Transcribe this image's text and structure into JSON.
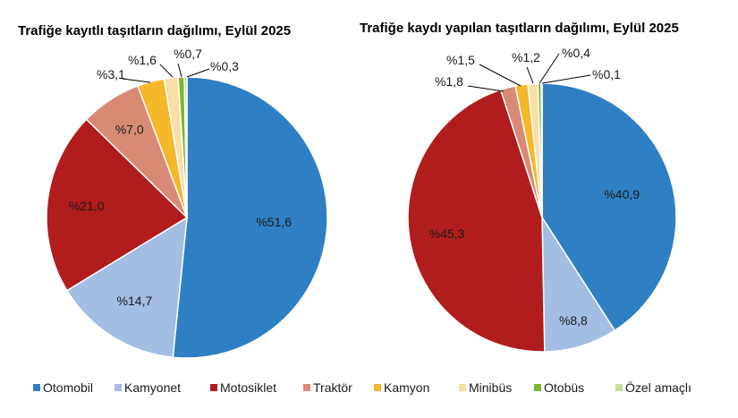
{
  "chart_data": [
    {
      "type": "pie",
      "title": "Trafiğe kayıtlı taşıtların dağılımı, Eylül 2025",
      "categories": [
        "Otomobil",
        "Kamyonet",
        "Motosiklet",
        "Traktör",
        "Kamyon",
        "Minibüs",
        "Otobüs",
        "Özel amaçlı"
      ],
      "values": [
        51.6,
        14.7,
        21.0,
        7.0,
        3.1,
        1.6,
        0.7,
        0.3
      ],
      "labels": [
        "%51,6",
        "%14,7",
        "%21,0",
        "%7,0",
        "%3,1",
        "%1,6",
        "%0,7",
        "%0,3"
      ]
    },
    {
      "type": "pie",
      "title": "Trafiğe kaydı yapılan taşıtların dağılımı, Eylül 2025",
      "categories": [
        "Otomobil",
        "Kamyonet",
        "Motosiklet",
        "Traktör",
        "Kamyon",
        "Minibüs",
        "Otobüs",
        "Özel amaçlı"
      ],
      "values": [
        40.9,
        8.8,
        45.3,
        1.8,
        1.5,
        1.2,
        0.4,
        0.1
      ],
      "labels": [
        "%40,9",
        "%8,8",
        "%45,3",
        "%1,8",
        "%1,5",
        "%1,2",
        "%0,4",
        "%0,1"
      ]
    }
  ],
  "legend": {
    "position": "bottom",
    "items": [
      "Otomobil",
      "Kamyonet",
      "Motosiklet",
      "Traktör",
      "Kamyon",
      "Minibüs",
      "Otobüs",
      "Özel amaçlı"
    ]
  },
  "colors": [
    "#2E7FC4",
    "#A3BDE3",
    "#B11D1D",
    "#D98A75",
    "#F5B82A",
    "#FBDDA6",
    "#7DB52D",
    "#C9DDA4"
  ]
}
